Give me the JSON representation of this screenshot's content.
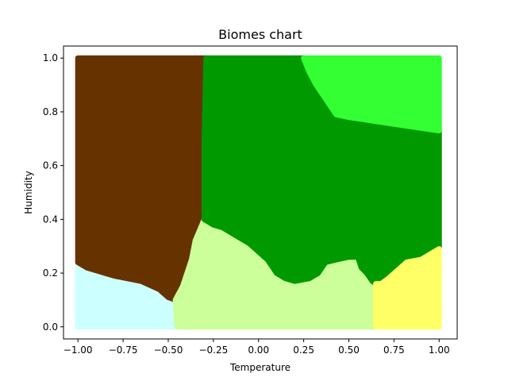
{
  "chart_data": {
    "type": "scatter",
    "title": "Biomes chart",
    "xlabel": "Temperature",
    "ylabel": "Humidity",
    "xlim": [
      -1.08,
      1.1
    ],
    "ylim": [
      -0.045,
      1.045
    ],
    "xticks": [
      -1.0,
      -0.75,
      -0.5,
      -0.25,
      0.0,
      0.25,
      0.5,
      0.75,
      1.0
    ],
    "xtick_labels": [
      "−1.00",
      "−0.75",
      "−0.50",
      "−0.25",
      "0.00",
      "0.25",
      "0.50",
      "0.75",
      "1.00"
    ],
    "yticks": [
      0.0,
      0.2,
      0.4,
      0.6,
      0.8,
      1.0
    ],
    "ytick_labels": [
      "0.0",
      "0.2",
      "0.4",
      "0.6",
      "0.8",
      "1.0"
    ],
    "grid": false,
    "legend": false,
    "regions": [
      {
        "color": "#ccffff",
        "polygon": [
          [
            -1.0,
            0.0
          ],
          [
            -1.0,
            0.24
          ],
          [
            -0.95,
            0.22
          ],
          [
            -0.8,
            0.19
          ],
          [
            -0.65,
            0.17
          ],
          [
            -0.55,
            0.14
          ],
          [
            -0.5,
            0.11
          ],
          [
            -0.46,
            0.1
          ],
          [
            -0.45,
            0.0
          ]
        ]
      },
      {
        "color": "#663300",
        "polygon": [
          [
            -1.0,
            1.0
          ],
          [
            -0.29,
            1.0
          ],
          [
            -0.3,
            0.7
          ],
          [
            -0.3,
            0.4
          ],
          [
            -0.35,
            0.32
          ],
          [
            -0.37,
            0.25
          ],
          [
            -0.42,
            0.15
          ],
          [
            -0.46,
            0.1
          ],
          [
            -0.5,
            0.11
          ],
          [
            -0.55,
            0.14
          ],
          [
            -0.65,
            0.17
          ],
          [
            -0.8,
            0.19
          ],
          [
            -0.95,
            0.22
          ],
          [
            -1.0,
            0.24
          ]
        ]
      },
      {
        "color": "#ccff99",
        "polygon": [
          [
            -0.45,
            0.0
          ],
          [
            0.65,
            0.0
          ],
          [
            0.65,
            0.14
          ],
          [
            0.63,
            0.17
          ],
          [
            0.6,
            0.2
          ],
          [
            0.57,
            0.22
          ],
          [
            0.55,
            0.26
          ],
          [
            0.5,
            0.26
          ],
          [
            0.43,
            0.25
          ],
          [
            0.37,
            0.24
          ],
          [
            0.33,
            0.2
          ],
          [
            0.28,
            0.18
          ],
          [
            0.2,
            0.17
          ],
          [
            0.15,
            0.18
          ],
          [
            0.1,
            0.2
          ],
          [
            0.05,
            0.25
          ],
          [
            0.0,
            0.28
          ],
          [
            -0.05,
            0.31
          ],
          [
            -0.1,
            0.33
          ],
          [
            -0.15,
            0.35
          ],
          [
            -0.2,
            0.37
          ],
          [
            -0.25,
            0.38
          ],
          [
            -0.3,
            0.4
          ],
          [
            -0.35,
            0.32
          ],
          [
            -0.37,
            0.25
          ],
          [
            -0.42,
            0.15
          ],
          [
            -0.46,
            0.1
          ]
        ]
      },
      {
        "color": "#009900",
        "polygon": [
          [
            -0.29,
            1.0
          ],
          [
            0.25,
            1.0
          ],
          [
            0.28,
            0.95
          ],
          [
            0.32,
            0.9
          ],
          [
            0.38,
            0.84
          ],
          [
            0.43,
            0.79
          ],
          [
            0.5,
            0.78
          ],
          [
            0.6,
            0.77
          ],
          [
            0.7,
            0.76
          ],
          [
            0.8,
            0.75
          ],
          [
            0.9,
            0.74
          ],
          [
            1.0,
            0.73
          ],
          [
            1.0,
            0.29
          ],
          [
            0.95,
            0.27
          ],
          [
            0.9,
            0.25
          ],
          [
            0.82,
            0.24
          ],
          [
            0.77,
            0.21
          ],
          [
            0.72,
            0.18
          ],
          [
            0.68,
            0.16
          ],
          [
            0.65,
            0.16
          ],
          [
            0.63,
            0.17
          ],
          [
            0.6,
            0.2
          ],
          [
            0.57,
            0.22
          ],
          [
            0.55,
            0.26
          ],
          [
            0.5,
            0.26
          ],
          [
            0.43,
            0.25
          ],
          [
            0.37,
            0.24
          ],
          [
            0.33,
            0.2
          ],
          [
            0.28,
            0.18
          ],
          [
            0.2,
            0.17
          ],
          [
            0.15,
            0.18
          ],
          [
            0.1,
            0.2
          ],
          [
            0.05,
            0.25
          ],
          [
            0.0,
            0.28
          ],
          [
            -0.05,
            0.31
          ],
          [
            -0.1,
            0.33
          ],
          [
            -0.15,
            0.35
          ],
          [
            -0.2,
            0.37
          ],
          [
            -0.25,
            0.38
          ],
          [
            -0.3,
            0.4
          ],
          [
            -0.3,
            0.7
          ]
        ]
      },
      {
        "color": "#33ff33",
        "polygon": [
          [
            0.25,
            1.0
          ],
          [
            1.0,
            1.0
          ],
          [
            1.0,
            0.73
          ],
          [
            0.9,
            0.74
          ],
          [
            0.8,
            0.75
          ],
          [
            0.7,
            0.76
          ],
          [
            0.6,
            0.77
          ],
          [
            0.5,
            0.78
          ],
          [
            0.43,
            0.79
          ],
          [
            0.38,
            0.84
          ],
          [
            0.32,
            0.9
          ],
          [
            0.28,
            0.95
          ]
        ]
      },
      {
        "color": "#ffff66",
        "polygon": [
          [
            0.65,
            0.0
          ],
          [
            1.0,
            0.0
          ],
          [
            1.0,
            0.29
          ],
          [
            0.95,
            0.27
          ],
          [
            0.9,
            0.25
          ],
          [
            0.82,
            0.24
          ],
          [
            0.77,
            0.21
          ],
          [
            0.72,
            0.18
          ],
          [
            0.68,
            0.16
          ],
          [
            0.65,
            0.16
          ]
        ]
      }
    ]
  }
}
